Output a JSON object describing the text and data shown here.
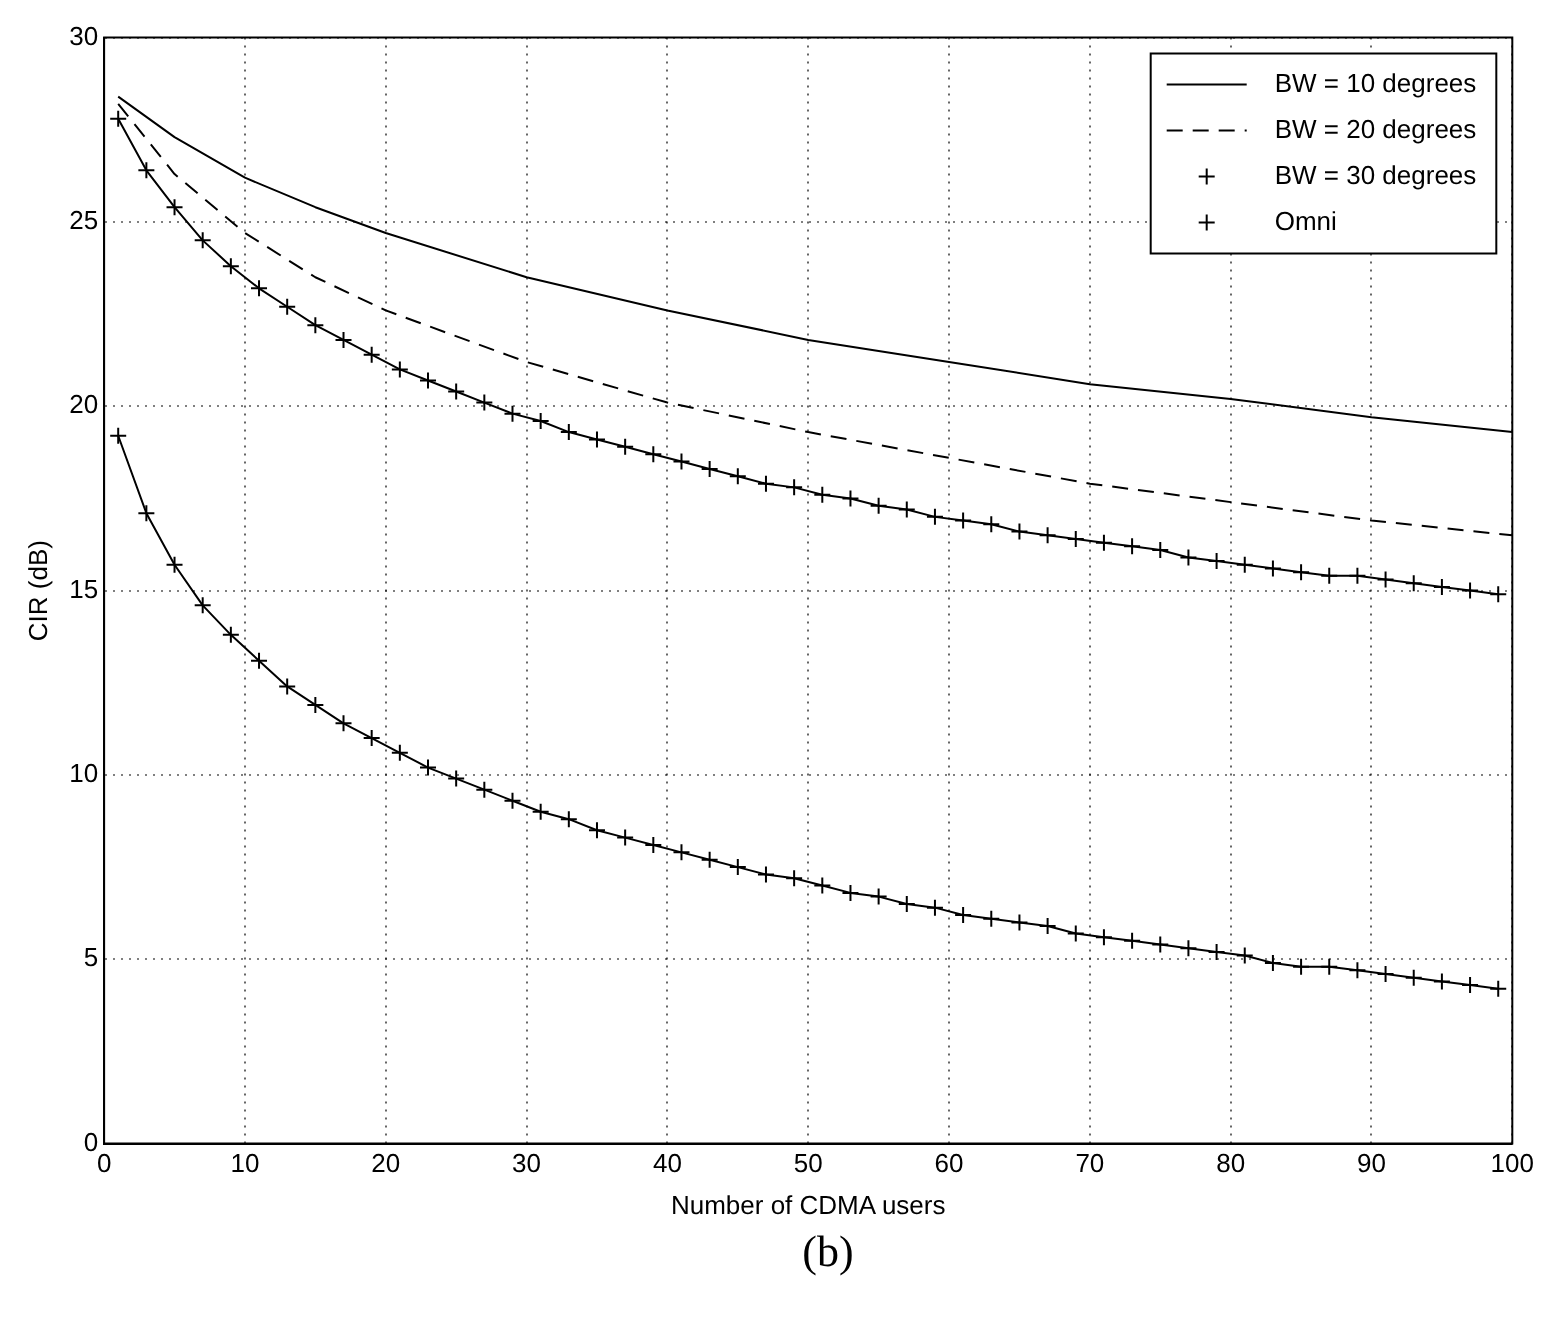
{
  "chart_data": {
    "type": "line",
    "xlabel": "Number of CDMA users",
    "ylabel": "CIR (dB)",
    "annotations": [
      "(b)"
    ],
    "xlim": [
      0,
      100
    ],
    "xticks": [
      0,
      10,
      20,
      30,
      40,
      50,
      60,
      70,
      80,
      90,
      100
    ],
    "ylim": [
      0,
      30
    ],
    "yticks": [
      0,
      5,
      10,
      15,
      20,
      25,
      30
    ],
    "grid": true,
    "legend": "top right",
    "series": [
      {
        "name": "BW = 10 degrees",
        "color": "#000000",
        "marker": "none",
        "line_style": "solid",
        "x": [
          1,
          5,
          10,
          15,
          20,
          30,
          40,
          50,
          60,
          70,
          80,
          90,
          100
        ],
        "values": [
          28.4,
          27.3,
          26.2,
          25.4,
          24.7,
          23.5,
          22.6,
          21.8,
          21.2,
          20.6,
          20.2,
          19.7,
          19.3
        ]
      },
      {
        "name": "BW = 20 degrees",
        "color": "#000000",
        "marker": "none",
        "line_style": "dashed",
        "x": [
          1,
          5,
          10,
          15,
          20,
          30,
          40,
          50,
          60,
          70,
          80,
          90,
          100
        ],
        "values": [
          28.2,
          26.3,
          24.7,
          23.5,
          22.6,
          21.2,
          20.1,
          19.3,
          18.6,
          17.9,
          17.4,
          16.9,
          16.5
        ]
      },
      {
        "name": "BW = 30 degrees",
        "color": "#000000",
        "marker": "cross",
        "line_style": "solid",
        "x": [
          1,
          3,
          5,
          7,
          9,
          11,
          13,
          15,
          17,
          19,
          21,
          23,
          25,
          27,
          29,
          31,
          33,
          35,
          37,
          39,
          41,
          43,
          45,
          47,
          49,
          51,
          53,
          55,
          57,
          59,
          61,
          63,
          65,
          67,
          69,
          71,
          73,
          75,
          77,
          79,
          81,
          83,
          85,
          87,
          89,
          91,
          93,
          95,
          97,
          99
        ],
        "values": [
          27.8,
          26.4,
          25.4,
          24.5,
          23.8,
          23.2,
          22.7,
          22.2,
          21.8,
          21.4,
          21.0,
          20.7,
          20.4,
          20.1,
          19.8,
          19.6,
          19.3,
          19.1,
          18.9,
          18.7,
          18.5,
          18.3,
          18.1,
          17.9,
          17.8,
          17.6,
          17.5,
          17.3,
          17.2,
          17.0,
          16.9,
          16.8,
          16.6,
          16.5,
          16.4,
          16.3,
          16.2,
          16.1,
          15.9,
          15.8,
          15.7,
          15.6,
          15.5,
          15.4,
          15.4,
          15.3,
          15.2,
          15.1,
          15.0,
          14.9
        ]
      },
      {
        "name": "Omni",
        "color": "#000000",
        "marker": "cross",
        "line_style": "solid",
        "x": [
          1,
          3,
          5,
          7,
          9,
          11,
          13,
          15,
          17,
          19,
          21,
          23,
          25,
          27,
          29,
          31,
          33,
          35,
          37,
          39,
          41,
          43,
          45,
          47,
          49,
          51,
          53,
          55,
          57,
          59,
          61,
          63,
          65,
          67,
          69,
          71,
          73,
          75,
          77,
          79,
          81,
          83,
          85,
          87,
          89,
          91,
          93,
          95,
          97,
          99
        ],
        "values": [
          19.2,
          17.1,
          15.7,
          14.6,
          13.8,
          13.1,
          12.4,
          11.9,
          11.4,
          11.0,
          10.6,
          10.2,
          9.9,
          9.6,
          9.3,
          9.0,
          8.8,
          8.5,
          8.3,
          8.1,
          7.9,
          7.7,
          7.5,
          7.3,
          7.2,
          7.0,
          6.8,
          6.7,
          6.5,
          6.4,
          6.2,
          6.1,
          6.0,
          5.9,
          5.7,
          5.6,
          5.5,
          5.4,
          5.3,
          5.2,
          5.1,
          4.9,
          4.8,
          4.8,
          4.7,
          4.6,
          4.5,
          4.4,
          4.3,
          4.2
        ]
      }
    ]
  }
}
